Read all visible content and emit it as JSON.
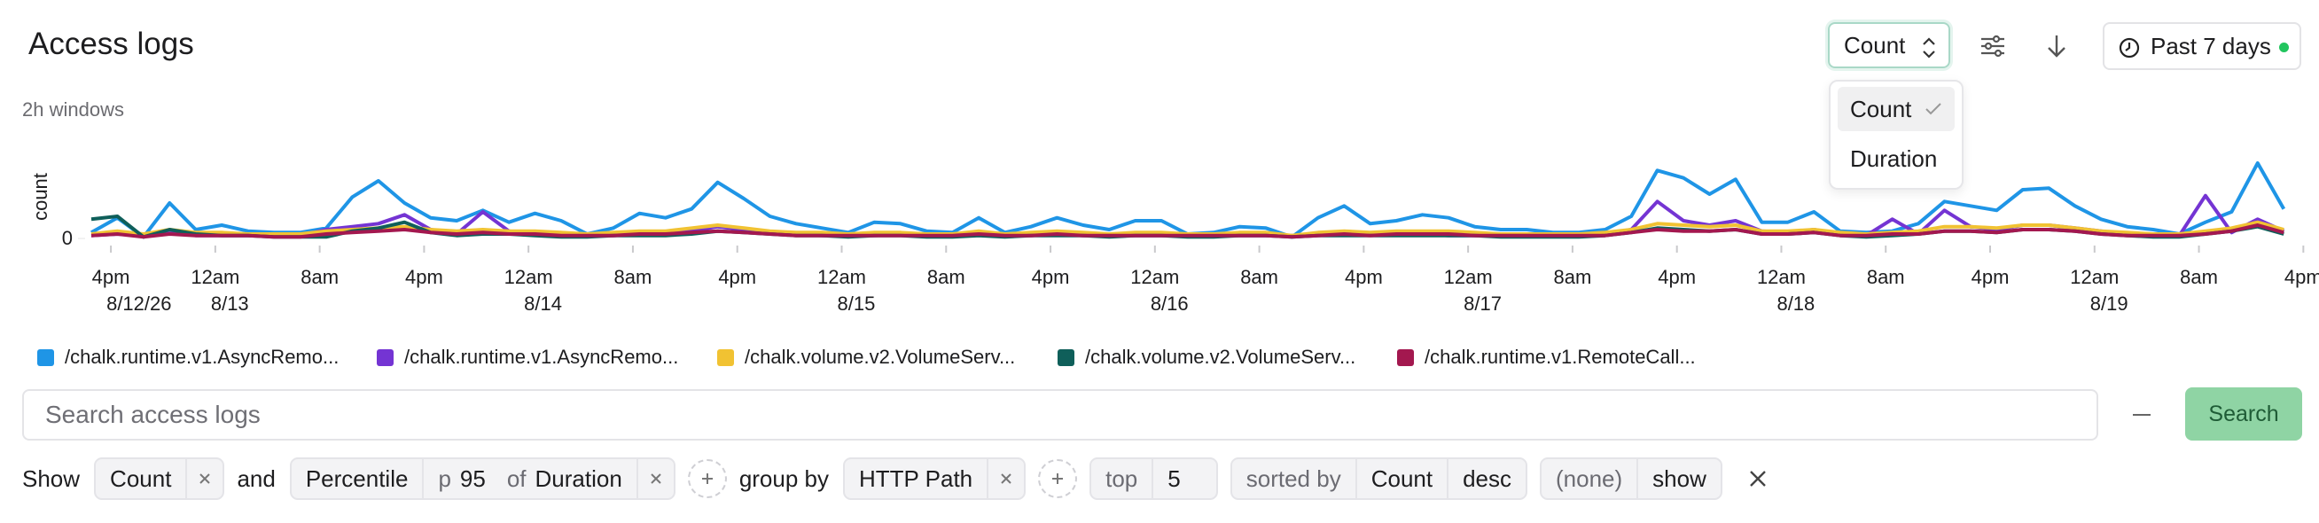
{
  "header": {
    "title": "Access logs",
    "metric_select": "Count",
    "time_range": "Past 7 days"
  },
  "metric_menu": {
    "options": [
      "Count",
      "Duration"
    ]
  },
  "window_label": "2h windows",
  "chart_data": {
    "type": "line",
    "y_label": "count",
    "x": [
      -1.5,
      0.5,
      2.5,
      4.5,
      6.5,
      8.5,
      10.5,
      12.5,
      14.5,
      16.5,
      18.5,
      20.5,
      22.5,
      24.5,
      26.5,
      28.5,
      30.5,
      32.5,
      34.5,
      36.5,
      38.5,
      40.5,
      42.5,
      44.5,
      46.5,
      48.5,
      50.5,
      52.5,
      54.5,
      56.5,
      58.5,
      60.5,
      62.5,
      64.5,
      66.5,
      68.5,
      70.5,
      72.5,
      74.5,
      76.5,
      78.5,
      80.5,
      82.5,
      84.5,
      86.5,
      88.5,
      90.5,
      92.5,
      94.5,
      96.5,
      98.5,
      100.5,
      102.5,
      104.5,
      106.5,
      108.5,
      110.5,
      112.5,
      114.5,
      116.5,
      118.5,
      120.5,
      122.5,
      124.5,
      126.5,
      128.5,
      130.5,
      132.5,
      134.5,
      136.5,
      138.5,
      140.5,
      142.5,
      144.5,
      146.5,
      148.5,
      150.5,
      152.5,
      154.5,
      156.5,
      158.5,
      160.5,
      162.5,
      164.5,
      166.5
    ],
    "xlim": [
      -1.5,
      169.2
    ],
    "xticks": [
      {
        "value": 0,
        "label": "4pm",
        "date": "8/12/26"
      },
      {
        "value": 8,
        "label": "12am",
        "date": "8/13"
      },
      {
        "value": 16,
        "label": "8am"
      },
      {
        "value": 24,
        "label": "4pm"
      },
      {
        "value": 32,
        "label": "12am",
        "date": "8/14"
      },
      {
        "value": 40,
        "label": "8am"
      },
      {
        "value": 48,
        "label": "4pm"
      },
      {
        "value": 56,
        "label": "12am",
        "date": "8/15"
      },
      {
        "value": 64,
        "label": "8am"
      },
      {
        "value": 72,
        "label": "4pm"
      },
      {
        "value": 80,
        "label": "12am",
        "date": "8/16"
      },
      {
        "value": 88,
        "label": "8am"
      },
      {
        "value": 96,
        "label": "4pm"
      },
      {
        "value": 104,
        "label": "12am",
        "date": "8/17"
      },
      {
        "value": 112,
        "label": "8am"
      },
      {
        "value": 120,
        "label": "4pm"
      },
      {
        "value": 128,
        "label": "12am",
        "date": "8/18"
      },
      {
        "value": 136,
        "label": "8am"
      },
      {
        "value": 144,
        "label": "4pm"
      },
      {
        "value": 152,
        "label": "12am",
        "date": "8/19"
      },
      {
        "value": 160,
        "label": "8am"
      },
      {
        "value": 168,
        "label": "4pm"
      }
    ],
    "ylim": [
      0,
      60
    ],
    "yticks": [
      0
    ],
    "series": [
      {
        "name": "/chalk.runtime.v1.AsyncRemo...",
        "color": "#1f95e6",
        "values": [
          4,
          14,
          1,
          24,
          6,
          9,
          5,
          4,
          4,
          7,
          28,
          39,
          24,
          14,
          12,
          19,
          11,
          17,
          12,
          3,
          7,
          17,
          14,
          20,
          38,
          27,
          15,
          10,
          7,
          4,
          11,
          10,
          5,
          4,
          14,
          4,
          8,
          14,
          9,
          6,
          12,
          12,
          3,
          4,
          8,
          7,
          1,
          14,
          22,
          10,
          12,
          16,
          14,
          8,
          6,
          6,
          4,
          4,
          6,
          15,
          46,
          41,
          30,
          40,
          11,
          11,
          18,
          5,
          4,
          5,
          10,
          25,
          22,
          19,
          33,
          34,
          22,
          13,
          8,
          6,
          3,
          11,
          18,
          51,
          20
        ]
      },
      {
        "name": "/chalk.runtime.v1.AsyncRemo...",
        "color": "#7434d3",
        "values": [
          2,
          3,
          2,
          4,
          2,
          2,
          2,
          2,
          2,
          6,
          8,
          10,
          16,
          6,
          3,
          18,
          5,
          3,
          2,
          2,
          2,
          3,
          3,
          5,
          8,
          6,
          4,
          3,
          2,
          2,
          2,
          3,
          2,
          2,
          3,
          2,
          2,
          3,
          2,
          2,
          2,
          2,
          2,
          2,
          2,
          2,
          2,
          3,
          3,
          3,
          3,
          3,
          2,
          2,
          2,
          2,
          2,
          2,
          3,
          6,
          25,
          12,
          9,
          12,
          5,
          4,
          6,
          3,
          2,
          13,
          3,
          19,
          8,
          6,
          9,
          9,
          7,
          5,
          3,
          2,
          2,
          29,
          4,
          13,
          5
        ]
      },
      {
        "name": "/chalk.volume.v2.VolumeServ...",
        "color": "#f1c232",
        "values": [
          3,
          5,
          3,
          6,
          4,
          4,
          3,
          3,
          3,
          5,
          6,
          7,
          8,
          6,
          5,
          6,
          5,
          5,
          4,
          3,
          4,
          5,
          5,
          7,
          9,
          7,
          5,
          4,
          4,
          3,
          4,
          4,
          3,
          3,
          5,
          3,
          4,
          5,
          4,
          3,
          4,
          4,
          3,
          3,
          4,
          4,
          2,
          4,
          5,
          4,
          5,
          5,
          5,
          4,
          3,
          3,
          3,
          3,
          4,
          6,
          10,
          9,
          8,
          9,
          5,
          5,
          6,
          4,
          3,
          4,
          5,
          8,
          8,
          7,
          9,
          9,
          7,
          5,
          4,
          3,
          3,
          5,
          7,
          11,
          6
        ]
      },
      {
        "name": "/chalk.volume.v2.VolumeServ...",
        "color": "#0f5f5a",
        "values": [
          13,
          15,
          1,
          6,
          3,
          2,
          2,
          1,
          1,
          1,
          5,
          7,
          11,
          4,
          2,
          3,
          3,
          2,
          1,
          1,
          2,
          2,
          2,
          3,
          5,
          4,
          3,
          2,
          2,
          1,
          2,
          2,
          1,
          1,
          2,
          1,
          2,
          2,
          2,
          1,
          2,
          2,
          1,
          1,
          2,
          2,
          1,
          2,
          2,
          2,
          2,
          2,
          2,
          2,
          1,
          1,
          1,
          1,
          2,
          4,
          7,
          6,
          5,
          6,
          3,
          3,
          4,
          2,
          1,
          2,
          3,
          5,
          5,
          4,
          6,
          6,
          5,
          3,
          2,
          1,
          1,
          3,
          5,
          8,
          3
        ]
      },
      {
        "name": "/chalk.runtime.v1.RemoteCall...",
        "color": "#a3184f",
        "values": [
          2,
          3,
          1,
          3,
          2,
          2,
          2,
          1,
          1,
          3,
          4,
          5,
          6,
          4,
          3,
          4,
          3,
          3,
          2,
          2,
          2,
          3,
          3,
          4,
          5,
          4,
          3,
          2,
          2,
          2,
          2,
          2,
          2,
          2,
          3,
          2,
          2,
          3,
          2,
          2,
          2,
          2,
          2,
          2,
          2,
          2,
          1,
          2,
          3,
          2,
          3,
          3,
          3,
          2,
          2,
          2,
          2,
          2,
          2,
          4,
          6,
          5,
          5,
          6,
          3,
          3,
          4,
          2,
          2,
          3,
          3,
          5,
          5,
          4,
          6,
          6,
          5,
          3,
          2,
          2,
          2,
          3,
          5,
          9,
          4
        ]
      }
    ]
  },
  "search": {
    "placeholder": "Search access logs",
    "button": "Search"
  },
  "query": {
    "show": "Show",
    "aggregation": "Count",
    "and": "and",
    "percentile": {
      "name": "Percentile",
      "p_label": "p",
      "p": 95,
      "of": "of",
      "field": "Duration"
    },
    "group_by": "group by",
    "group_field": "HTTP Path",
    "top_label": "top",
    "top": 5,
    "sorted_by_label": "sorted by",
    "sort_field": "Count",
    "sort_order": "desc",
    "filter": "(none)",
    "filter_action": "show"
  }
}
